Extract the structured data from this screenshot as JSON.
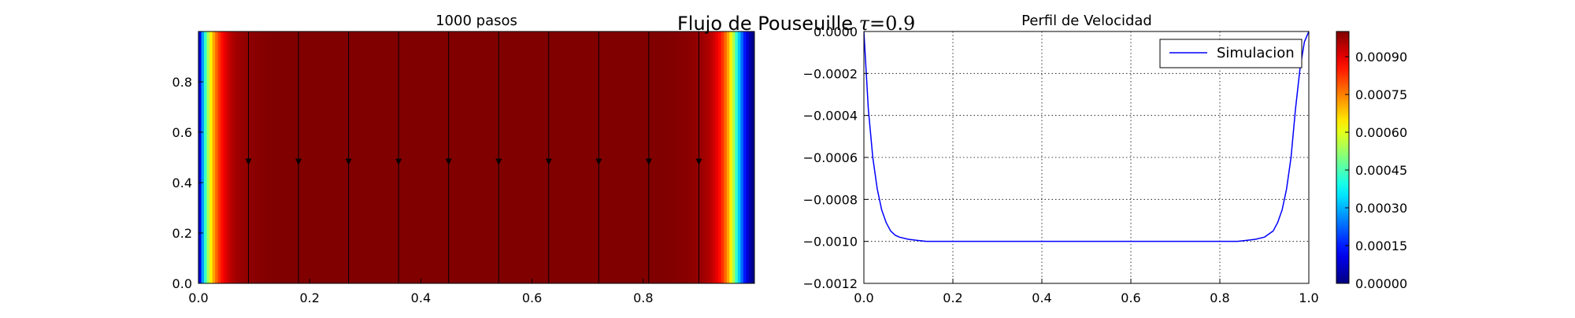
{
  "figure": {
    "suptitle_text": "Flujo de Pouseuille",
    "suptitle_symbol": "τ",
    "suptitle_equals": "=0.9"
  },
  "chart_data": [
    {
      "type": "heatmap",
      "title": "1000 pasos",
      "xlabel": "",
      "ylabel": "",
      "xlim": [
        0.0,
        1.0
      ],
      "ylim": [
        0.0,
        1.0
      ],
      "xticks": [
        "0.0",
        "0.2",
        "0.4",
        "0.6",
        "0.8"
      ],
      "yticks": [
        "0.0",
        "0.2",
        "0.4",
        "0.6",
        "0.8"
      ],
      "colormap": "jet",
      "value_range": [
        0.0,
        0.001
      ],
      "field": "velocity magnitude, Poiseuille profile across x",
      "streamline_x": [
        0.09,
        0.18,
        0.27,
        0.36,
        0.45,
        0.54,
        0.63,
        0.72,
        0.81,
        0.9
      ],
      "streamline_arrow_y": 0.47,
      "streamline_direction": "down"
    },
    {
      "type": "line",
      "title": "Perfil de Velocidad",
      "xlabel": "",
      "ylabel": "",
      "xlim": [
        0.0,
        1.0
      ],
      "ylim": [
        -0.0012,
        0.0
      ],
      "xticks": [
        "0.0",
        "0.2",
        "0.4",
        "0.6",
        "0.8",
        "1.0"
      ],
      "yticks": [
        "0.0000",
        "−0.0002",
        "−0.0004",
        "−0.0006",
        "−0.0008",
        "−0.0010",
        "−0.0012"
      ],
      "grid": true,
      "legend_position": "top-right",
      "series": [
        {
          "name": "Simulacion",
          "color": "#0000ff",
          "x": [
            0.0,
            0.01,
            0.02,
            0.03,
            0.04,
            0.05,
            0.06,
            0.07,
            0.08,
            0.1,
            0.12,
            0.14,
            0.16,
            0.2,
            0.3,
            0.4,
            0.5,
            0.6,
            0.7,
            0.8,
            0.84,
            0.86,
            0.88,
            0.9,
            0.92,
            0.93,
            0.94,
            0.95,
            0.96,
            0.97,
            0.98,
            0.99,
            1.0
          ],
          "y": [
            0.0,
            -0.00037,
            -0.0006,
            -0.00075,
            -0.00085,
            -0.00091,
            -0.00095,
            -0.00097,
            -0.00098,
            -0.00099,
            -0.000995,
            -0.001,
            -0.001,
            -0.001,
            -0.001,
            -0.001,
            -0.001,
            -0.001,
            -0.001,
            -0.001,
            -0.001,
            -0.000995,
            -0.00099,
            -0.00098,
            -0.00095,
            -0.00091,
            -0.00085,
            -0.00075,
            -0.0006,
            -0.00037,
            -0.00018,
            -5e-05,
            0.0
          ]
        }
      ]
    }
  ],
  "colorbar": {
    "colormap": "jet",
    "range": [
      0.0,
      0.001
    ],
    "ticks": [
      "0.00000",
      "0.00015",
      "0.00030",
      "0.00045",
      "0.00060",
      "0.00075",
      "0.00090"
    ],
    "tick_values": [
      0.0,
      0.00015,
      0.0003,
      0.00045,
      0.0006,
      0.00075,
      0.0009
    ]
  }
}
